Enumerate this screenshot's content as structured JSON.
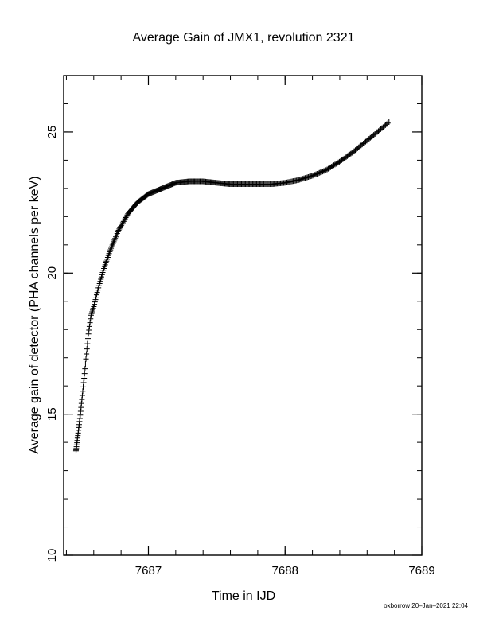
{
  "chart_data": {
    "type": "scatter",
    "title": "Average Gain of JMX1, revolution 2321",
    "xlabel": "Time in IJD",
    "ylabel": "Average gain of detector (PHA channels per keV)",
    "xlim": [
      7686.38,
      7689.0
    ],
    "ylim": [
      10,
      27
    ],
    "x_ticks": [
      {
        "value": 7687,
        "label": "7687"
      },
      {
        "value": 7688,
        "label": "7688"
      },
      {
        "value": 7689,
        "label": "7689"
      }
    ],
    "y_ticks": [
      {
        "value": 10,
        "label": "10"
      },
      {
        "value": 15,
        "label": "15"
      },
      {
        "value": 20,
        "label": "20"
      },
      {
        "value": 25,
        "label": "25"
      }
    ],
    "marker": "plus",
    "grid": false,
    "series": [
      {
        "x": [
          7686.47,
          7686.5,
          7686.53,
          7686.56,
          7686.58,
          7686.6,
          7686.63,
          7686.67,
          7686.72,
          7686.78,
          7686.85,
          7686.92,
          7687.0,
          7687.1,
          7687.2,
          7687.3,
          7687.4,
          7687.5,
          7687.6,
          7687.7,
          7687.8,
          7687.9,
          7688.0,
          7688.1,
          7688.2,
          7688.3,
          7688.4,
          7688.5,
          7688.6,
          7688.7,
          7688.76
        ],
        "y": [
          13.7,
          14.9,
          16.3,
          17.8,
          18.5,
          18.8,
          19.4,
          20.1,
          20.8,
          21.5,
          22.1,
          22.5,
          22.8,
          23.0,
          23.2,
          23.25,
          23.25,
          23.2,
          23.15,
          23.15,
          23.15,
          23.15,
          23.2,
          23.3,
          23.45,
          23.65,
          23.95,
          24.3,
          24.7,
          25.1,
          25.35
        ]
      }
    ]
  },
  "footer": "oxborrow 20–Jan–2021 22:04"
}
